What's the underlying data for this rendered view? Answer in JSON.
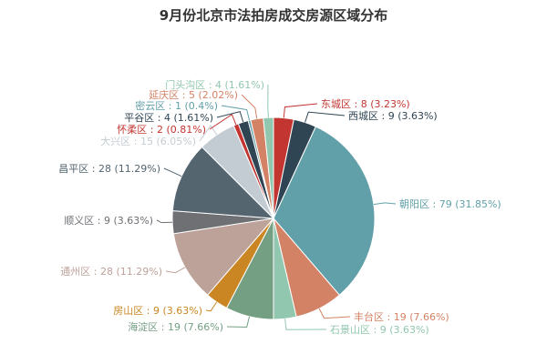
{
  "chart_data": {
    "type": "pie",
    "title": "9月份北京市法拍房成交房源区域分布",
    "label_separator": " : ",
    "slices": [
      {
        "name": "东城区",
        "value": 8,
        "percent": "3.23%",
        "color": "#c23531"
      },
      {
        "name": "西城区",
        "value": 9,
        "percent": "3.63%",
        "color": "#2f4554"
      },
      {
        "name": "朝阳区",
        "value": 79,
        "percent": "31.85%",
        "color": "#61a0a8"
      },
      {
        "name": "丰台区",
        "value": 19,
        "percent": "7.66%",
        "color": "#d48265"
      },
      {
        "name": "石景山区",
        "value": 9,
        "percent": "3.63%",
        "color": "#91c7ae"
      },
      {
        "name": "海淀区",
        "value": 19,
        "percent": "7.66%",
        "color": "#749f83"
      },
      {
        "name": "房山区",
        "value": 9,
        "percent": "3.63%",
        "color": "#ca8622"
      },
      {
        "name": "通州区",
        "value": 28,
        "percent": "11.29%",
        "color": "#bda29a"
      },
      {
        "name": "顺义区",
        "value": 9,
        "percent": "3.63%",
        "color": "#6e7074"
      },
      {
        "name": "昌平区",
        "value": 28,
        "percent": "11.29%",
        "color": "#546570"
      },
      {
        "name": "大兴区",
        "value": 15,
        "percent": "6.05%",
        "color": "#c4ccd3"
      },
      {
        "name": "怀柔区",
        "value": 2,
        "percent": "0.81%",
        "color": "#c23531"
      },
      {
        "name": "平谷区",
        "value": 4,
        "percent": "1.61%",
        "color": "#2f4554"
      },
      {
        "name": "密云区",
        "value": 1,
        "percent": "0.4%",
        "color": "#61a0a8"
      },
      {
        "name": "延庆区",
        "value": 5,
        "percent": "2.02%",
        "color": "#d48265"
      },
      {
        "name": "门头沟区",
        "value": 4,
        "percent": "1.61%",
        "color": "#91c7ae"
      }
    ]
  }
}
